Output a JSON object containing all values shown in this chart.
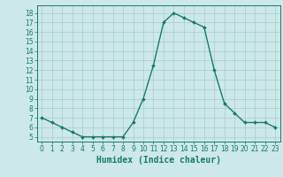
{
  "x": [
    0,
    1,
    2,
    3,
    4,
    5,
    6,
    7,
    8,
    9,
    10,
    11,
    12,
    13,
    14,
    15,
    16,
    17,
    18,
    19,
    20,
    21,
    22,
    23
  ],
  "y": [
    7.0,
    6.5,
    6.0,
    5.5,
    5.0,
    5.0,
    5.0,
    5.0,
    5.0,
    6.5,
    9.0,
    12.5,
    17.0,
    18.0,
    17.5,
    17.0,
    16.5,
    12.0,
    8.5,
    7.5,
    6.5,
    6.5,
    6.5,
    6.0
  ],
  "line_color": "#1a7a6a",
  "marker": "D",
  "marker_size": 2,
  "bg_color": "#cce8e8",
  "grid_color": "#aacccc",
  "axis_color": "#1a7a6a",
  "xlabel": "Humidex (Indice chaleur)",
  "xlabel_fontsize": 7,
  "ylabel_ticks": [
    5,
    6,
    7,
    8,
    9,
    10,
    11,
    12,
    13,
    14,
    15,
    16,
    17,
    18
  ],
  "ylim": [
    4.5,
    18.8
  ],
  "xlim": [
    -0.5,
    23.5
  ],
  "xtick_labels": [
    "0",
    "1",
    "2",
    "3",
    "4",
    "5",
    "6",
    "7",
    "8",
    "9",
    "10",
    "11",
    "12",
    "13",
    "14",
    "15",
    "16",
    "17",
    "18",
    "19",
    "20",
    "21",
    "22",
    "23"
  ],
  "tick_fontsize": 5.5
}
